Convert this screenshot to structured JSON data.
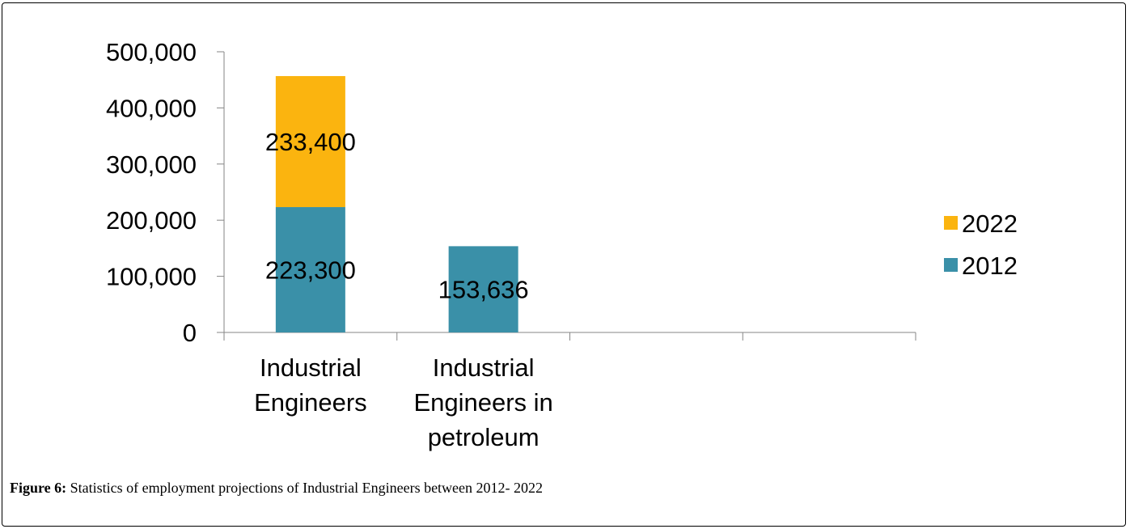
{
  "chart_data": {
    "type": "bar",
    "stacked": true,
    "title": "",
    "xlabel": "",
    "ylabel": "",
    "ylim": [
      0,
      500000
    ],
    "yticks": [
      0,
      100000,
      200000,
      300000,
      400000,
      500000
    ],
    "ytick_labels": [
      "0",
      "100,000",
      "200,000",
      "300,000",
      "400,000",
      "500,000"
    ],
    "categories": [
      [
        "Industrial",
        "Engineers"
      ],
      [
        "Industrial",
        "Engineers in",
        "petroleum"
      ],
      [],
      []
    ],
    "series": [
      {
        "name": "2012",
        "color": "#3a90a8",
        "values": [
          223300,
          153636,
          null,
          null
        ],
        "labels": [
          "223,300",
          "153,636",
          "",
          ""
        ]
      },
      {
        "name": "2022",
        "color": "#fbb40f",
        "values": [
          233400,
          null,
          null,
          null
        ],
        "labels": [
          "233,400",
          "",
          "",
          ""
        ]
      }
    ],
    "legend": {
      "position": "right",
      "order": [
        "2022",
        "2012"
      ]
    },
    "grid": false
  },
  "caption": {
    "label": "Figure 6:",
    "text": " Statistics of employment projections of Industrial Engineers between 2012- 2022"
  }
}
